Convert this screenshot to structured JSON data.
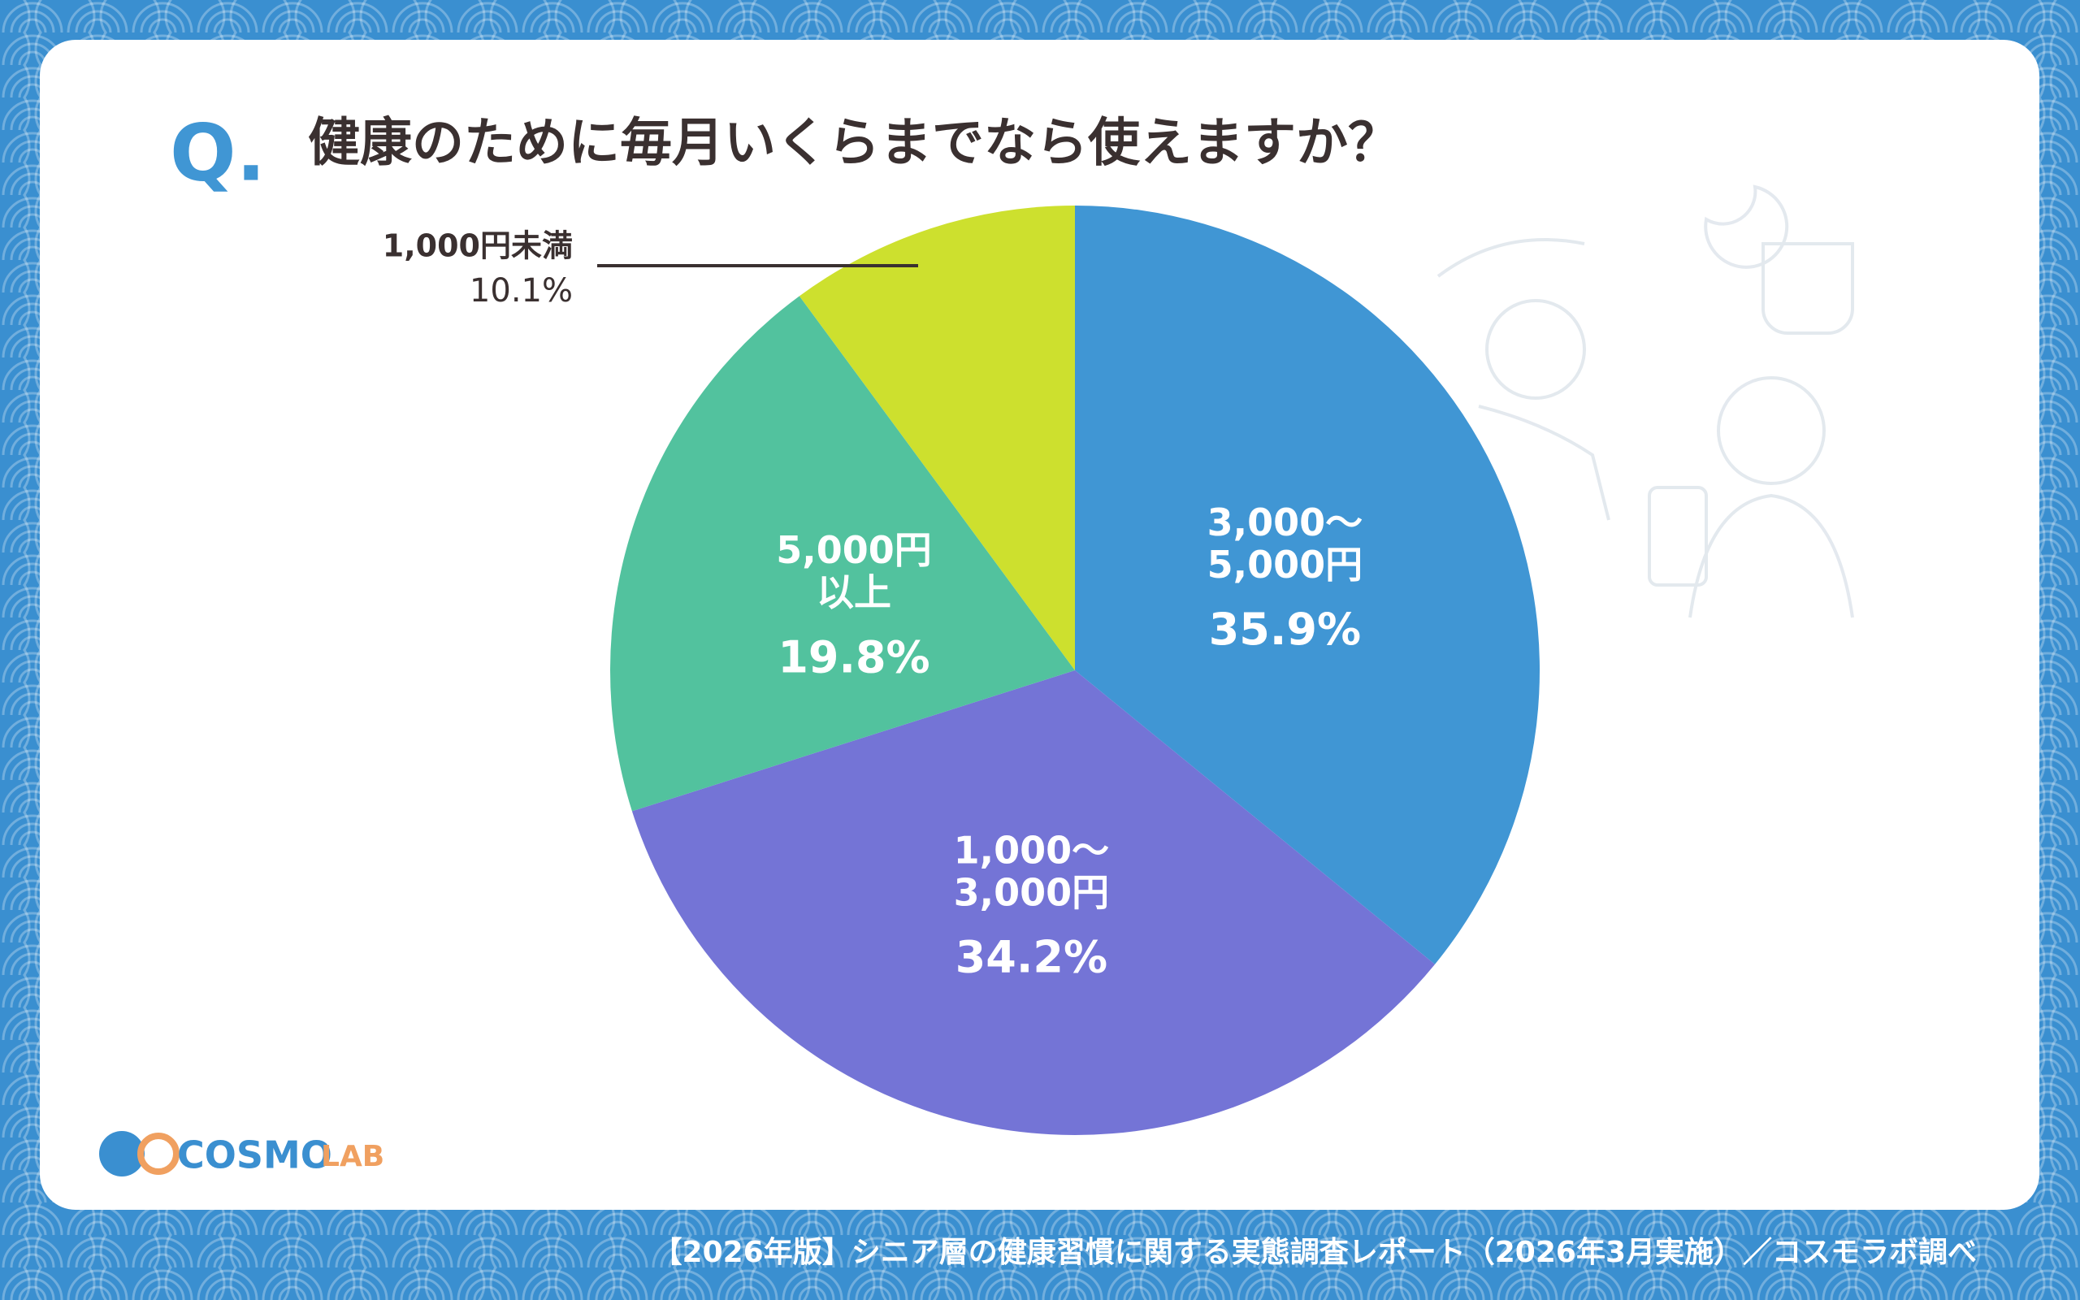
{
  "q_mark": "Q.",
  "chart_data": {
    "type": "pie",
    "title": "健康のために毎月いくらまでなら使えますか？",
    "categories": [
      [
        "3,000～",
        "5,000円"
      ],
      [
        "1,000～",
        "3,000円"
      ],
      [
        "5,000円",
        "以上"
      ],
      [
        "1,000円未満"
      ]
    ],
    "values": [
      35.9,
      34.2,
      19.8,
      10.1
    ],
    "value_labels": [
      "35.9%",
      "34.2%",
      "19.8%",
      "10.1%"
    ],
    "colors": [
      "#4096d4",
      "#7474d6",
      "#52c29e",
      "#cde02e"
    ]
  },
  "logo": {
    "main": "COSMO",
    "sub": "LAB"
  },
  "footer": "【2026年版】シニア層の健康習慣に関する実態調査レポート（2026年3月実施）／コスモラボ調べ"
}
